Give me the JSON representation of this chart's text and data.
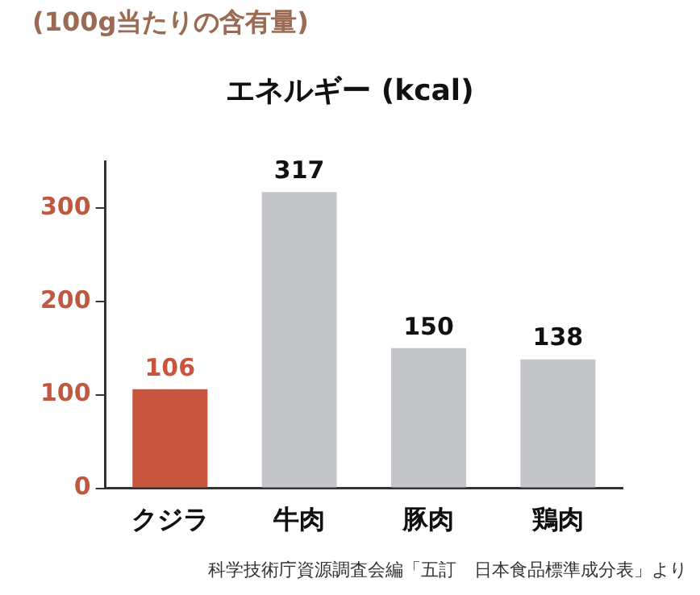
{
  "chart_data": {
    "type": "bar",
    "subtitle": "(100g当たりの含有量)",
    "title": "エネルギー (kcal)",
    "categories": [
      "クジラ",
      "牛肉",
      "豚肉",
      "鶏肉"
    ],
    "values": [
      106,
      317,
      150,
      138
    ],
    "colors": [
      "#c9553e",
      "#c4c6ca",
      "#c4c6ca",
      "#c4c6ca"
    ],
    "ylim": [
      0,
      350
    ],
    "yticks": [
      0,
      100,
      200,
      300
    ],
    "grid": false,
    "legend": false,
    "data_labels": true,
    "annotations": [
      "科学技術庁資源調査会編「五訂　日本食品標準成分表」より"
    ]
  }
}
